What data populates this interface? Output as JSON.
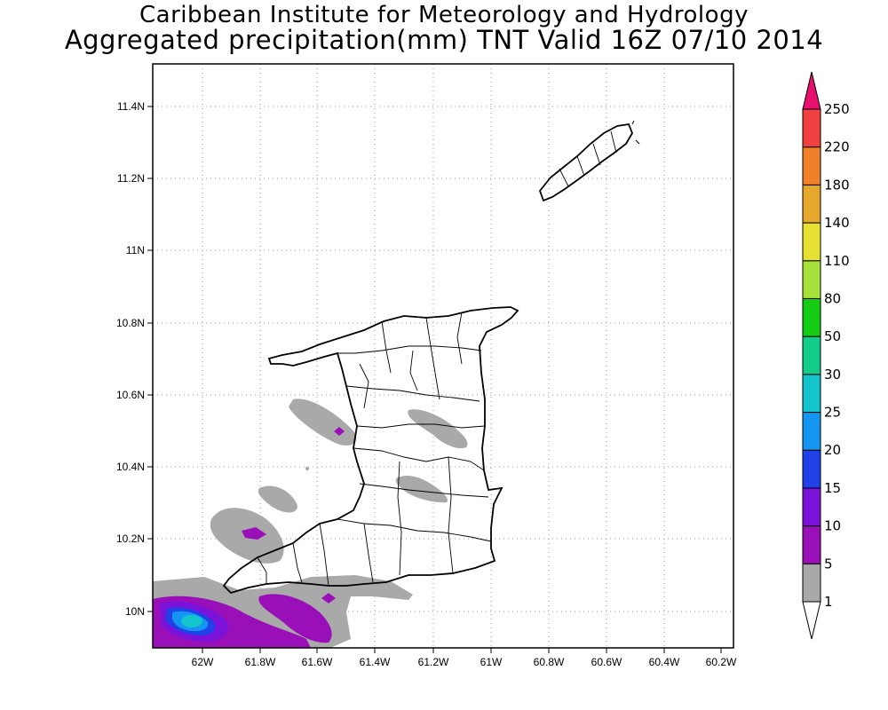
{
  "title": "Caribbean Institute for Meteorology and Hydrology",
  "subtitle": "Aggregated precipitation(mm) TNT Valid 16Z 07/10 2014",
  "map": {
    "lon_range": [
      -62.13,
      -60.17
    ],
    "lat_range": [
      9.9,
      11.52
    ],
    "x_ticks": [
      "62W",
      "61.8W",
      "61.6W",
      "61.4W",
      "61.2W",
      "61W",
      "60.8W",
      "60.6W",
      "60.4W",
      "60.2W"
    ],
    "y_ticks": [
      "10N",
      "10.2N",
      "10.4N",
      "10.6N",
      "10.8N",
      "11N",
      "11.2N",
      "11.4N"
    ],
    "grid": "dotted"
  },
  "colorbar": {
    "labels": [
      "1",
      "5",
      "10",
      "15",
      "20",
      "25",
      "30",
      "50",
      "80",
      "110",
      "140",
      "180",
      "220",
      "250"
    ],
    "colors": [
      "#ffffff",
      "#a9a9a9",
      "#9a10b8",
      "#7a12d9",
      "#2040e8",
      "#1496f0",
      "#14c4cc",
      "#14cc8a",
      "#14cc14",
      "#a6e03a",
      "#e6e032",
      "#e6a82c",
      "#f0802a",
      "#f04040",
      "#e8106e"
    ]
  },
  "precip_areas": [
    {
      "name": "rain-offshore-west",
      "level": "1-5"
    },
    {
      "name": "rain-central",
      "level": "1-5"
    },
    {
      "name": "rain-southwest-sea",
      "level": "5-25"
    }
  ]
}
